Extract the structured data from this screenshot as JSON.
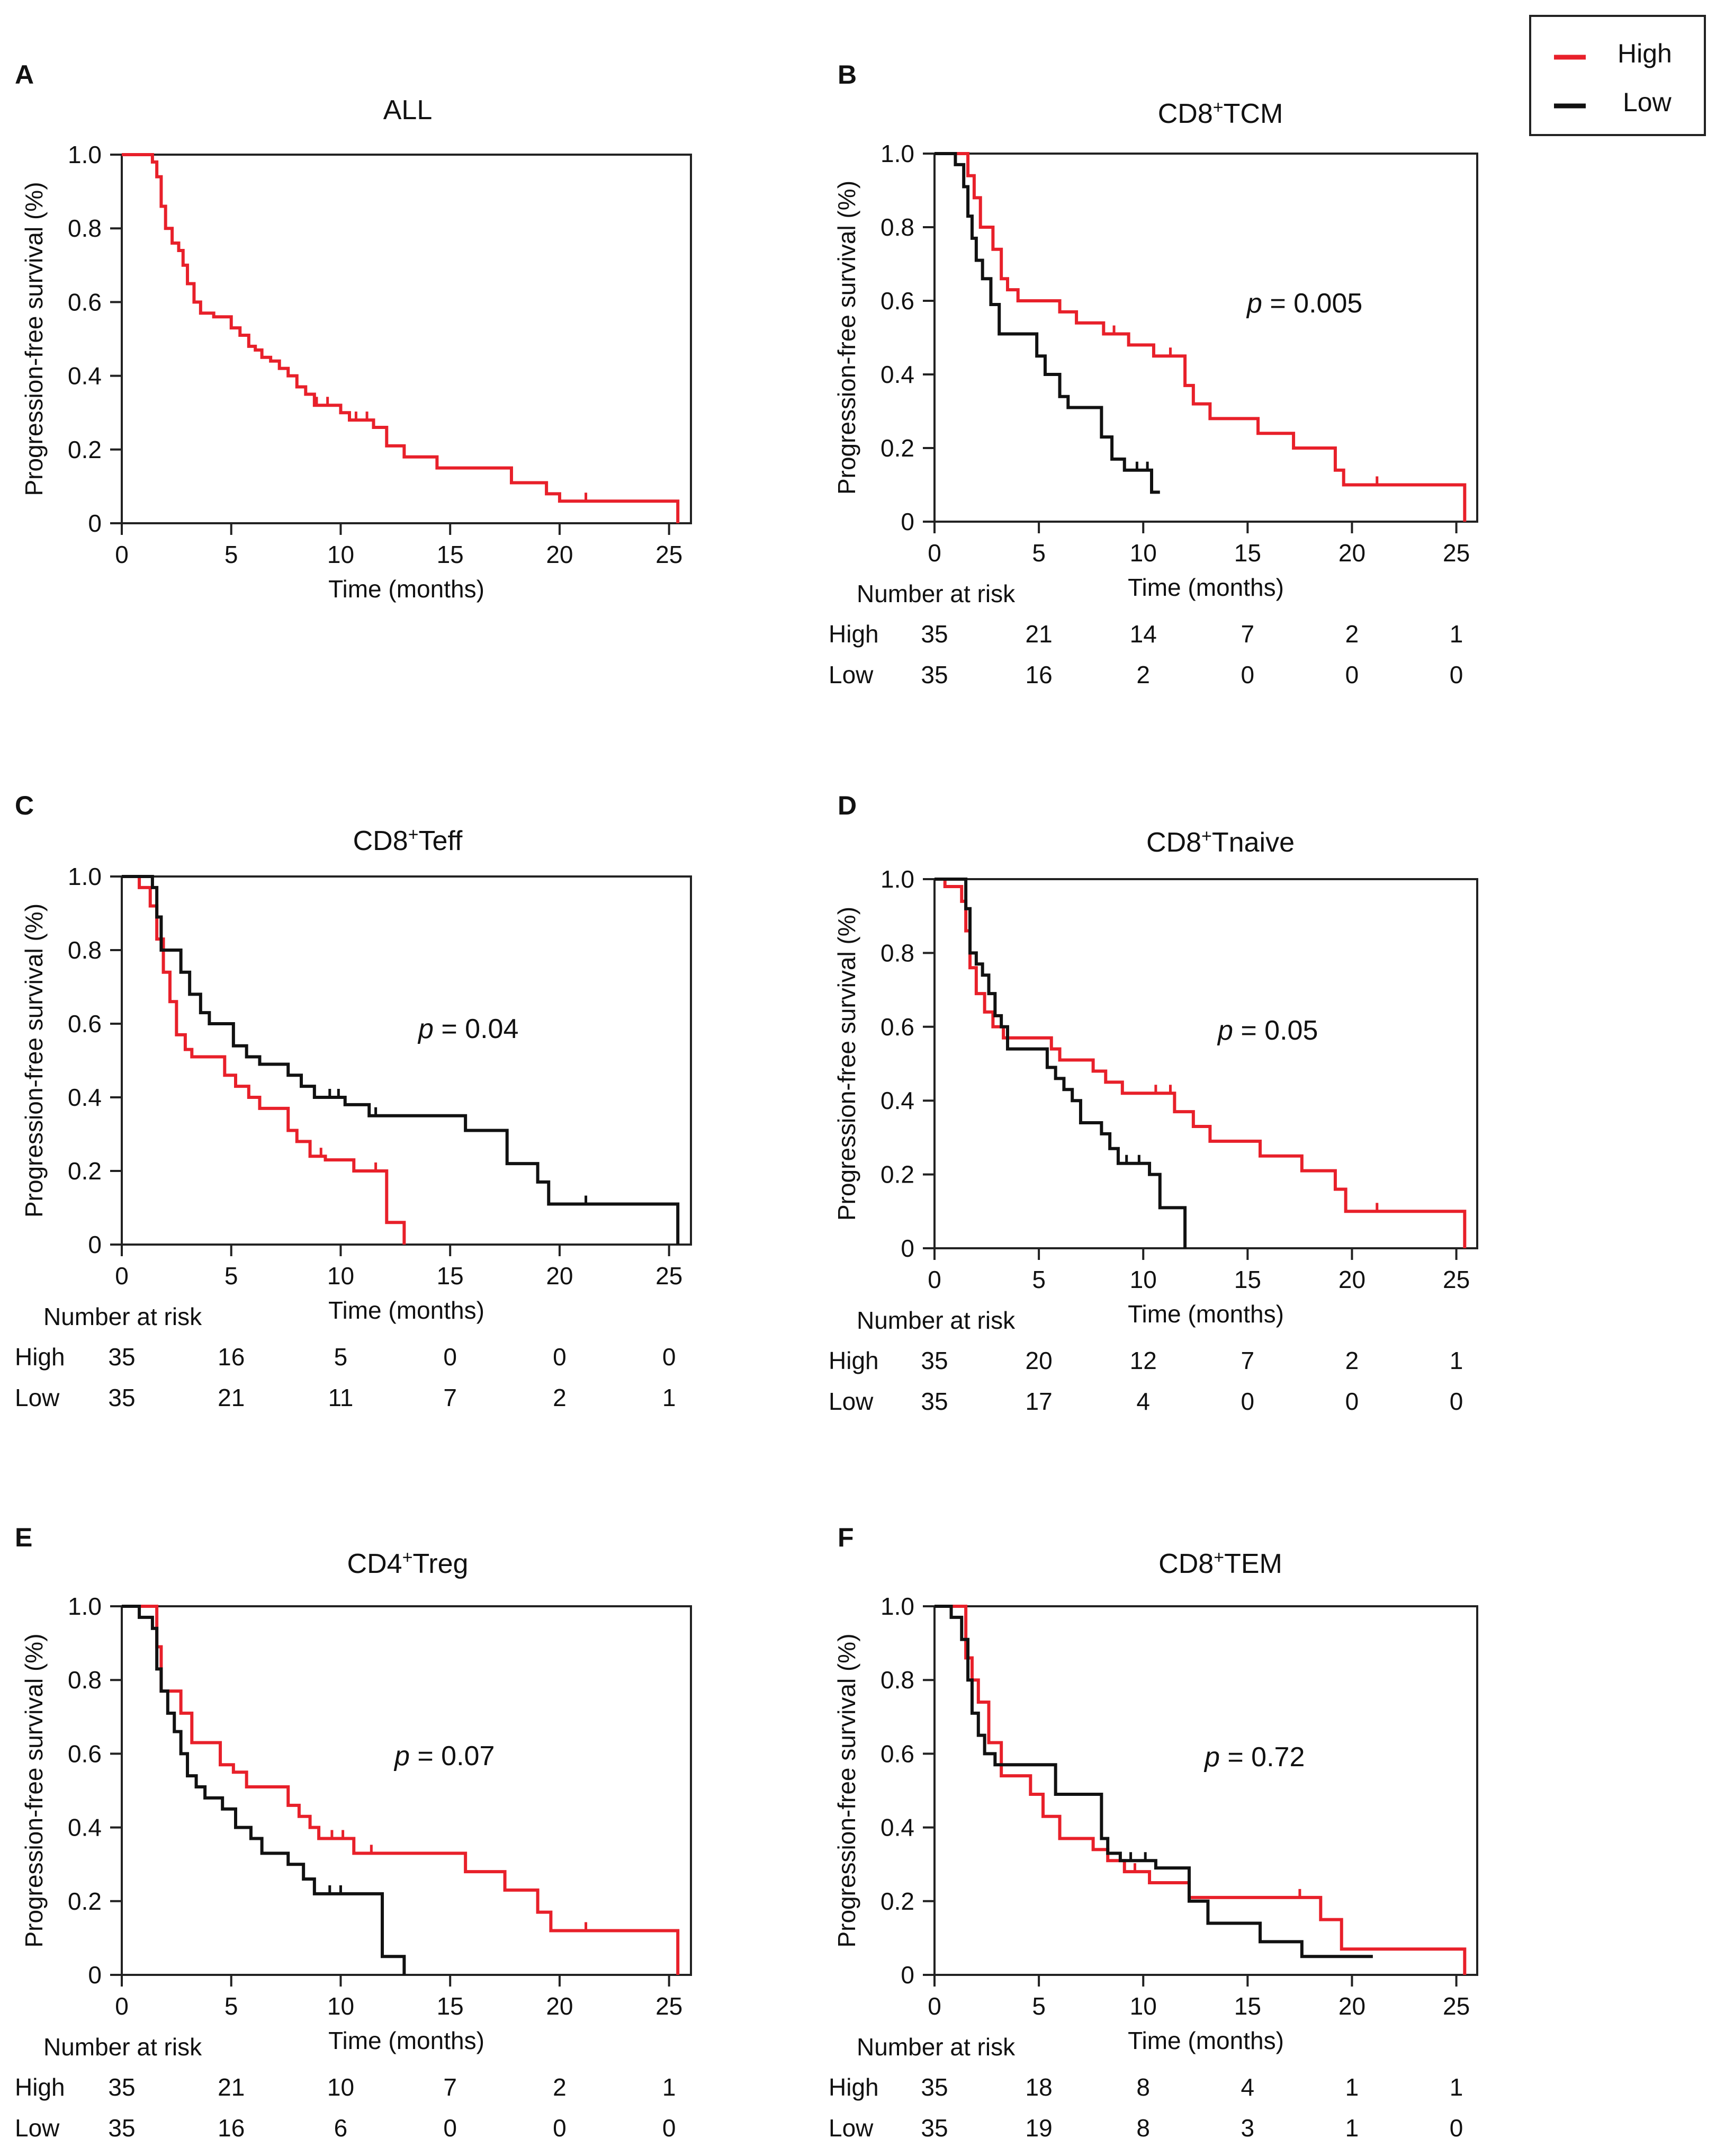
{
  "legend": {
    "items": [
      {
        "label": "High",
        "color": "#e8202a"
      },
      {
        "label": "Low",
        "color": "#111111"
      }
    ]
  },
  "colors": {
    "high": "#e8202a",
    "low": "#111111"
  },
  "chart_data": [
    {
      "id": "A",
      "type": "line",
      "panel_label": "A",
      "title": "ALL",
      "xlabel": "Time (months)",
      "ylabel": "Progression-free survival (%)",
      "xlim": [
        0,
        26
      ],
      "ylim": [
        0,
        1
      ],
      "x_ticks": [
        "0",
        "5",
        "10",
        "15",
        "20",
        "25"
      ],
      "y_ticks": [
        "0",
        "0.2",
        "0.4",
        "0.6",
        "0.8",
        "1.0"
      ],
      "p_prefix": "p",
      "p_value": "",
      "series": [
        {
          "name": "ALL",
          "color": "#e8202a",
          "x": [
            0.5,
            1.4,
            1.6,
            1.8,
            2.0,
            2.3,
            2.6,
            2.8,
            3.0,
            3.3,
            3.6,
            4.2,
            5.0,
            5.4,
            5.8,
            6.1,
            6.4,
            6.8,
            7.2,
            7.6,
            8.0,
            8.4,
            8.8,
            10.0,
            10.4,
            11.5,
            12.1,
            12.9,
            14.4,
            17.8,
            19.4,
            20.0,
            25.4
          ],
          "y": [
            1.0,
            0.98,
            0.94,
            0.86,
            0.8,
            0.76,
            0.74,
            0.7,
            0.65,
            0.6,
            0.57,
            0.56,
            0.53,
            0.51,
            0.48,
            0.47,
            0.45,
            0.44,
            0.42,
            0.4,
            0.37,
            0.35,
            0.32,
            0.3,
            0.28,
            0.26,
            0.21,
            0.18,
            0.15,
            0.11,
            0.08,
            0.06,
            0.0
          ],
          "censor_x": [
            8.9,
            9.4,
            10.7,
            11.2,
            21.2
          ],
          "risk": []
        }
      ]
    },
    {
      "id": "B",
      "type": "line",
      "panel_label": "B",
      "title": "CD8",
      "title_sup": "+",
      "title_rest": "TCM",
      "xlabel": "Time (months)",
      "ylabel": "Progression-free survival (%)",
      "xlim": [
        0,
        26
      ],
      "ylim": [
        0,
        1
      ],
      "x_ticks": [
        "0",
        "5",
        "10",
        "15",
        "20",
        "25"
      ],
      "y_ticks": [
        "0",
        "0.2",
        "0.4",
        "0.6",
        "0.8",
        "1.0"
      ],
      "p_prefix": "p",
      "p_value": " = 0.005",
      "risk_header": "Number at risk",
      "series": [
        {
          "name": "High",
          "color": "#e8202a",
          "x": [
            0.6,
            1.6,
            1.9,
            2.2,
            2.8,
            3.2,
            3.5,
            4.0,
            6.0,
            6.8,
            8.1,
            9.3,
            10.5,
            12.0,
            12.4,
            13.2,
            15.5,
            17.2,
            19.2,
            19.6,
            25.4
          ],
          "y": [
            1.0,
            0.94,
            0.88,
            0.8,
            0.74,
            0.66,
            0.63,
            0.6,
            0.57,
            0.54,
            0.51,
            0.48,
            0.45,
            0.37,
            0.32,
            0.28,
            0.24,
            0.2,
            0.14,
            0.1,
            0.0
          ],
          "censor_x": [
            8.6,
            11.3,
            21.2
          ],
          "risk": [
            "35",
            "21",
            "14",
            "7",
            "2",
            "1"
          ]
        },
        {
          "name": "Low",
          "color": "#111111",
          "x": [
            0.7,
            1.0,
            1.4,
            1.6,
            1.8,
            2.0,
            2.3,
            2.7,
            3.1,
            4.9,
            5.3,
            6.0,
            6.4,
            7.0,
            8.0,
            8.5,
            9.1,
            10.4,
            10.8
          ],
          "y": [
            1.0,
            0.97,
            0.91,
            0.83,
            0.77,
            0.71,
            0.66,
            0.59,
            0.51,
            0.45,
            0.4,
            0.34,
            0.31,
            0.31,
            0.23,
            0.17,
            0.14,
            0.08,
            0.08
          ],
          "censor_x": [
            9.7,
            10.2
          ],
          "risk": [
            "35",
            "16",
            "2",
            "0",
            "0",
            "0"
          ]
        }
      ]
    },
    {
      "id": "C",
      "type": "line",
      "panel_label": "C",
      "title": "CD8",
      "title_sup": "+",
      "title_rest": "Teff",
      "xlabel": "Time (months)",
      "ylabel": "Progression-free survival (%)",
      "xlim": [
        0,
        26
      ],
      "ylim": [
        0,
        1
      ],
      "x_ticks": [
        "0",
        "5",
        "10",
        "15",
        "20",
        "25"
      ],
      "y_ticks": [
        "0",
        "0.2",
        "0.4",
        "0.6",
        "0.8",
        "1.0"
      ],
      "p_prefix": "p",
      "p_value": " = 0.04",
      "risk_header": "Number at risk",
      "series": [
        {
          "name": "High",
          "color": "#e8202a",
          "x": [
            0.8,
            1.3,
            1.6,
            1.9,
            2.2,
            2.5,
            2.9,
            3.2,
            4.7,
            5.2,
            5.8,
            6.3,
            7.6,
            8.0,
            8.6,
            9.3,
            10.6,
            12.1,
            12.7,
            12.9
          ],
          "y": [
            0.97,
            0.92,
            0.83,
            0.74,
            0.66,
            0.57,
            0.53,
            0.51,
            0.46,
            0.43,
            0.4,
            0.37,
            0.31,
            0.28,
            0.24,
            0.23,
            0.2,
            0.06,
            0.06,
            0.0
          ],
          "censor_x": [
            9.1,
            11.6
          ],
          "risk": [
            "35",
            "16",
            "5",
            "0",
            "0",
            "0"
          ]
        },
        {
          "name": "Low",
          "color": "#111111",
          "x": [
            0.6,
            1.4,
            1.6,
            1.8,
            2.7,
            3.1,
            3.6,
            4.0,
            5.1,
            5.7,
            6.3,
            7.6,
            8.2,
            8.8,
            10.2,
            11.3,
            15.7,
            17.6,
            19.0,
            19.5,
            25.4
          ],
          "y": [
            1.0,
            0.97,
            0.89,
            0.8,
            0.74,
            0.68,
            0.63,
            0.6,
            0.54,
            0.51,
            0.49,
            0.46,
            0.43,
            0.4,
            0.38,
            0.35,
            0.31,
            0.22,
            0.17,
            0.11,
            0.0
          ],
          "censor_x": [
            9.5,
            9.9,
            11.6,
            21.2
          ],
          "risk": [
            "35",
            "21",
            "11",
            "7",
            "2",
            "1"
          ]
        }
      ]
    },
    {
      "id": "D",
      "type": "line",
      "panel_label": "D",
      "title": "CD8",
      "title_sup": "+",
      "title_rest": "Tnaive",
      "xlabel": "Time (months)",
      "ylabel": "Progression-free survival (%)",
      "xlim": [
        0,
        26
      ],
      "ylim": [
        0,
        1
      ],
      "x_ticks": [
        "0",
        "5",
        "10",
        "15",
        "20",
        "25"
      ],
      "y_ticks": [
        "0",
        "0.2",
        "0.4",
        "0.6",
        "0.8",
        "1.0"
      ],
      "p_prefix": "p",
      "p_value": " = 0.05",
      "risk_header": "Number at risk",
      "series": [
        {
          "name": "High",
          "color": "#e8202a",
          "x": [
            0.5,
            1.3,
            1.5,
            1.7,
            2.0,
            2.4,
            2.8,
            3.3,
            5.6,
            6.0,
            7.6,
            8.2,
            9.0,
            11.5,
            12.4,
            13.2,
            15.6,
            17.6,
            19.2,
            19.7,
            25.4
          ],
          "y": [
            0.98,
            0.94,
            0.86,
            0.76,
            0.69,
            0.64,
            0.6,
            0.57,
            0.54,
            0.51,
            0.48,
            0.45,
            0.42,
            0.37,
            0.33,
            0.29,
            0.25,
            0.21,
            0.16,
            0.1,
            0.0
          ],
          "censor_x": [
            10.6,
            11.3,
            21.2
          ],
          "risk": [
            "35",
            "20",
            "12",
            "7",
            "2",
            "1"
          ]
        },
        {
          "name": "Low",
          "color": "#111111",
          "x": [
            1.3,
            1.5,
            1.7,
            2.0,
            2.3,
            2.6,
            2.9,
            3.2,
            3.5,
            5.4,
            5.8,
            6.2,
            6.6,
            7.0,
            8.0,
            8.4,
            8.8,
            10.3,
            10.8,
            11.9,
            12.0
          ],
          "y": [
            1.0,
            0.92,
            0.8,
            0.77,
            0.74,
            0.69,
            0.63,
            0.6,
            0.54,
            0.49,
            0.46,
            0.43,
            0.4,
            0.34,
            0.31,
            0.27,
            0.23,
            0.2,
            0.11,
            0.11,
            0.0
          ],
          "censor_x": [
            9.2,
            9.8
          ],
          "risk": [
            "35",
            "17",
            "4",
            "0",
            "0",
            "0"
          ]
        }
      ]
    },
    {
      "id": "E",
      "type": "line",
      "panel_label": "E",
      "title": "CD4",
      "title_sup": "+",
      "title_rest": "Treg",
      "xlabel": "Time (months)",
      "ylabel": "Progression-free survival (%)",
      "xlim": [
        0,
        26
      ],
      "ylim": [
        0,
        1
      ],
      "x_ticks": [
        "0",
        "5",
        "10",
        "15",
        "20",
        "25"
      ],
      "y_ticks": [
        "0",
        "0.2",
        "0.4",
        "0.6",
        "0.8",
        "1.0"
      ],
      "p_prefix": "p",
      "p_value": " = 0.07",
      "risk_header": "Number at risk",
      "series": [
        {
          "name": "High",
          "color": "#e8202a",
          "x": [
            1.3,
            1.6,
            1.8,
            2.7,
            3.2,
            4.5,
            5.1,
            5.7,
            7.6,
            8.1,
            8.6,
            9.0,
            10.6,
            15.7,
            17.5,
            19.0,
            19.6,
            25.4
          ],
          "y": [
            1.0,
            0.89,
            0.77,
            0.71,
            0.63,
            0.57,
            0.55,
            0.51,
            0.46,
            0.43,
            0.4,
            0.37,
            0.33,
            0.28,
            0.23,
            0.17,
            0.12,
            0.0
          ],
          "censor_x": [
            9.6,
            10.1,
            11.4,
            21.2
          ],
          "risk": [
            "35",
            "21",
            "10",
            "7",
            "2",
            "1"
          ]
        },
        {
          "name": "Low",
          "color": "#111111",
          "x": [
            0.8,
            1.4,
            1.6,
            1.8,
            2.1,
            2.4,
            2.7,
            3.0,
            3.4,
            3.8,
            4.6,
            5.2,
            5.9,
            6.4,
            7.6,
            8.3,
            8.8,
            10.4,
            11.9,
            12.4,
            12.9
          ],
          "y": [
            0.97,
            0.94,
            0.83,
            0.77,
            0.71,
            0.66,
            0.6,
            0.54,
            0.51,
            0.48,
            0.45,
            0.4,
            0.37,
            0.33,
            0.3,
            0.26,
            0.22,
            0.22,
            0.05,
            0.05,
            0.0
          ],
          "censor_x": [
            9.5,
            10.0
          ],
          "risk": [
            "35",
            "16",
            "6",
            "0",
            "0",
            "0"
          ]
        }
      ]
    },
    {
      "id": "F",
      "type": "line",
      "panel_label": "F",
      "title": "CD8",
      "title_sup": "+",
      "title_rest": "TEM",
      "xlabel": "Time (months)",
      "ylabel": "Progression-free survival (%)",
      "xlim": [
        0,
        26
      ],
      "ylim": [
        0,
        1
      ],
      "x_ticks": [
        "0",
        "5",
        "10",
        "15",
        "20",
        "25"
      ],
      "y_ticks": [
        "0",
        "0.2",
        "0.4",
        "0.6",
        "0.8",
        "1.0"
      ],
      "p_prefix": "p",
      "p_value": " = 0.72",
      "risk_header": "Number at risk",
      "series": [
        {
          "name": "High",
          "color": "#e8202a",
          "x": [
            1.3,
            1.5,
            1.8,
            2.1,
            2.6,
            3.2,
            4.6,
            5.2,
            6.0,
            7.6,
            8.3,
            9.1,
            10.3,
            12.2,
            18.5,
            19.5,
            25.4
          ],
          "y": [
            1.0,
            0.86,
            0.8,
            0.74,
            0.63,
            0.54,
            0.49,
            0.43,
            0.37,
            0.34,
            0.31,
            0.28,
            0.25,
            0.21,
            0.15,
            0.07,
            0.0
          ],
          "censor_x": [
            9.6,
            17.5
          ],
          "risk": [
            "35",
            "18",
            "8",
            "4",
            "1",
            "1"
          ]
        },
        {
          "name": "Low",
          "color": "#111111",
          "x": [
            0.8,
            1.3,
            1.6,
            1.8,
            2.1,
            2.4,
            2.9,
            3.4,
            5.8,
            8.0,
            8.3,
            8.9,
            10.6,
            12.2,
            13.1,
            15.6,
            17.6,
            21.0
          ],
          "y": [
            0.97,
            0.91,
            0.8,
            0.71,
            0.65,
            0.6,
            0.57,
            0.57,
            0.49,
            0.37,
            0.33,
            0.31,
            0.29,
            0.2,
            0.14,
            0.09,
            0.05,
            0.05
          ],
          "censor_x": [
            9.4,
            10.1
          ],
          "risk": [
            "35",
            "19",
            "8",
            "3",
            "1",
            "0"
          ]
        }
      ]
    }
  ]
}
